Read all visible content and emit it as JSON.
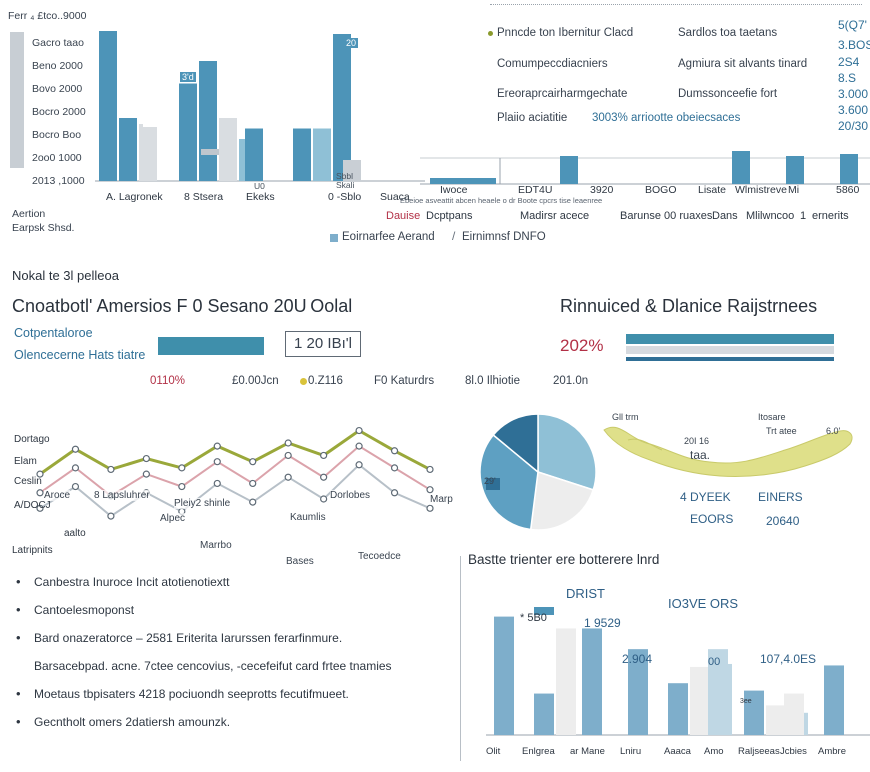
{
  "colors": {
    "teal": "#4d94b8",
    "teal_light": "#8fc0d6",
    "gray": "#d9dde1",
    "gray_mid": "#c9cfd5",
    "olive": "#9aa83a",
    "rose": "#dba3ab",
    "yellow_map": "#dfe08a",
    "text": "#2e3742",
    "red": "#b23046"
  },
  "top_left": {
    "corner_label": "Ferr ₄ £tco..9000",
    "y_ticks": [
      "Gacro taao",
      "Beno 2000",
      "Bovo 2000",
      "Bocro 2000",
      "Bocro Boo",
      "2oo0 1000",
      "2013 ,1000"
    ],
    "cat_labels": [
      "A. Lagronek",
      "8 Stsera",
      "Ekeks",
      "0 -Sblo",
      "Suaca"
    ],
    "cat_sublabels": [
      "",
      "",
      "U0",
      "Sbbl\nSkali",
      ""
    ],
    "bar_tags": [
      "",
      "",
      "3'd",
      "",
      "20"
    ],
    "aside": [
      "Aertion",
      "Earpsk Shsd."
    ]
  },
  "chart_data": [
    {
      "type": "bar",
      "title": "Ferr ₄ £tco..9000",
      "categories": [
        "A. Lagronek",
        "8 Stsera",
        "Ekeks",
        "0 -Sblo",
        "Suaca"
      ],
      "series": [
        {
          "name": "",
          "values": [
            100,
            65,
            0,
            0,
            0
          ]
        },
        {
          "name": "",
          "values": [
            42,
            80,
            35,
            35,
            0
          ]
        },
        {
          "name": "",
          "values": [
            38,
            42,
            0,
            0,
            0
          ]
        },
        {
          "name": "",
          "values": [
            0,
            28,
            0,
            35,
            0
          ]
        },
        {
          "name": "",
          "values": [
            0,
            0,
            0,
            98,
            0
          ]
        },
        {
          "name": "",
          "values": [
            0,
            0,
            0,
            0,
            14
          ]
        }
      ],
      "ylim": [
        0,
        100
      ]
    },
    {
      "type": "bar",
      "categories": [
        "Iwoce",
        "EDT4U",
        "3920",
        "BOGO",
        "Lisate",
        "Wlmistreve",
        "Mi",
        "5860"
      ],
      "values": [
        6,
        28,
        0,
        0,
        0,
        33,
        28,
        30
      ],
      "legend": [
        "Eoirnarfee Aerand",
        "Eirnimnsf DNFO"
      ]
    },
    {
      "type": "line",
      "categories": [
        "Dortago",
        "Elam",
        "Ceslin",
        "Arocs",
        "aalto",
        "8 Lapsluhrer",
        "Pleiy2 shinle",
        "Kaumlis",
        "Marrbo",
        "Dorlobes",
        "Tecoedce",
        "Marp"
      ],
      "series": [
        {
          "name": "",
          "values": [
            52,
            68,
            55,
            62,
            56,
            70,
            60,
            72,
            64,
            80,
            67,
            55
          ]
        },
        {
          "name": "",
          "values": [
            40,
            56,
            38,
            52,
            44,
            60,
            46,
            64,
            50,
            70,
            56,
            42
          ]
        },
        {
          "name": "",
          "values": [
            30,
            44,
            25,
            40,
            28,
            46,
            34,
            50,
            36,
            58,
            40,
            30
          ]
        }
      ]
    },
    {
      "type": "pie",
      "labels": [
        "",
        "",
        "",
        ""
      ],
      "values": [
        30,
        22,
        34,
        14
      ]
    },
    {
      "type": "bar",
      "title": "Bastte trienter ere botterere lnrd",
      "categories": [
        "Olit",
        "Enlgrea",
        "ar Mane",
        "Lniru",
        "Aaaca",
        "Amo",
        "Raljseeas",
        "Jcbies",
        "Ambre"
      ],
      "series": [
        {
          "name": "",
          "values": [
            80,
            28,
            72,
            58,
            35,
            0,
            30,
            0,
            47
          ]
        },
        {
          "name": "",
          "values": [
            0,
            72,
            0,
            0,
            46,
            0,
            20,
            28,
            0
          ]
        },
        {
          "name": "",
          "values": [
            0,
            0,
            0,
            0,
            48,
            58,
            15,
            0,
            0
          ]
        }
      ],
      "ylim": [
        0,
        100
      ]
    }
  ],
  "top_right_table": {
    "rows": [
      [
        "Pnncde ton Ibernitur Clacd",
        "Sardlos toa taetans",
        "5(Q7'"
      ],
      [
        "Comumpeccdiacniers",
        "Agmiura sit alvants tinard",
        "3.BOS"
      ],
      [
        "Ereoraprcairharmgechate",
        "Dumssonceefie fort",
        "2S4\n8.S"
      ],
      [
        "Plaiio aciatitie",
        "3003% arriootte obeiecsaces",
        "3.000\n3.600\n20/30"
      ]
    ],
    "header_strip": "________________________________________"
  },
  "mid_chart": {
    "tick_labels": [
      "Iwoce",
      "EDT4U",
      "3920",
      "BOGO",
      "Lisate",
      "Wlmistreve",
      "Mi",
      "5860"
    ],
    "row_labels": [
      "Dauise",
      "Dcptpans",
      "Madirsr acece",
      "Barunse 00 ruaxes",
      "Dans",
      "Mlilwncoo",
      "1",
      "ernerits"
    ],
    "small_text": "Ebeioe asveattit abcen heaele o dr Boote cpcrs tise leaenree",
    "legend": [
      "Eoirnarfee Aerand",
      "Eirnimnsf DNFO"
    ]
  },
  "mid_section": {
    "small_header": "Nokal te 3l pelleoa",
    "title_left": "Cnoatbotl' Amersios F 0 Sesano 20U Oolal",
    "title_right": "Rinnuiced & Dlanice Raijstrnees",
    "row1": "Cotpentaloroe",
    "row2": "Olencecerne Hats tiatre",
    "box_value": "1 20 IBı'l",
    "pct_value": "202%",
    "stats": [
      "0110%",
      "£0.00Jcn",
      "0.Z116",
      "F0 Katurdrs",
      "8l.0 Ilhiotie",
      "201.0n"
    ]
  },
  "line_labels": {
    "left": [
      "Dortago",
      "Elam",
      "Ceslin",
      "A/DOCJ",
      "aalto",
      "Latripnits"
    ],
    "inner": [
      "Aroce",
      "8 Lapsluhrer",
      "Pleiy2 shinle",
      "Kaumlis",
      "Marrbo",
      "Dorlobes",
      "Tecoedce",
      "Marp",
      "Bases",
      "Alpec"
    ]
  },
  "map_panel": {
    "labels": [
      "Gll trm",
      "Itosare",
      "Trt atee",
      "20I 16",
      "taa.",
      "6.0'",
      "29'",
      "4 DYEEK",
      "EINERS",
      "EOORS",
      "20640"
    ]
  },
  "bottom_right": {
    "title": "Bastte trienter ere botterere lnrd",
    "annotations": [
      "DRIST",
      "1 9529",
      "IO3VE ORS",
      "* 5B0",
      "2.904",
      "00",
      "107,4.0ES",
      "3ee"
    ],
    "y_ticks": [
      "",
      "",
      "",
      "",
      ""
    ],
    "cats": [
      "Olit",
      "Enlgrea",
      "ar Mane",
      "Lniru",
      "Aaaca",
      "Amo",
      "Raljseeas",
      "Jcbies",
      "Ambre"
    ]
  },
  "notes": [
    {
      "text": "Canbestra Inuroce Incit atotienotiextt",
      "bullet": true
    },
    {
      "text": "Cantoelesmoponst",
      "bullet": true
    },
    {
      "text": "Bard onazeratorce  –  2581 Eriterita Iarurssen ferarfinmure.",
      "bullet": true
    },
    {
      "text": "Barsacebpad.  acne.  7ctee cencovius, -cecefeifut card frtee tnamies",
      "bullet": false
    },
    {
      "text": "Moetaus tbpisaters    4218 pociuondh  seeprotts fecutifmueet.",
      "bullet": true
    },
    {
      "text": "Gecntholt omers 2datiersh amounzk.",
      "bullet": true
    }
  ]
}
